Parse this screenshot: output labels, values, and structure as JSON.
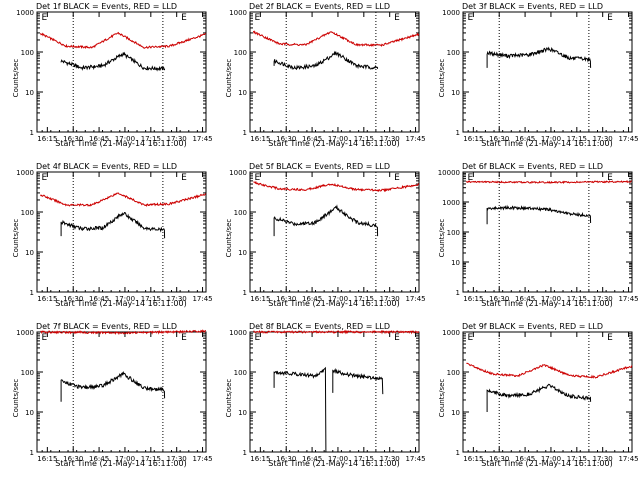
{
  "chart_data": [
    {
      "type": "line",
      "title": "Det 1f BLACK = Events, RED = LLD",
      "xlabel": "Start Time (21-May-14 16:11:00)",
      "ylabel": "Counts/sec",
      "y_scale": "log",
      "ylim": [
        1,
        1000
      ],
      "xlim_minutes": [
        -2,
        96
      ],
      "x_ticks": [
        "16:15",
        "16:30",
        "16:45",
        "17:00",
        "17:15",
        "17:30",
        "17:45"
      ],
      "y_ticks": [
        "1",
        "10",
        "100",
        "1000"
      ],
      "markers": [
        {
          "label": "E",
          "minute": 0
        },
        {
          "label": "E",
          "minute": 81
        }
      ],
      "vlines_minutes": [
        19,
        71
      ],
      "series": [
        {
          "color": "#000000",
          "start_minute": 12,
          "end_minute": 72,
          "start_value": 55,
          "end_value": 38,
          "x": [
            12,
            24,
            36,
            48,
            60,
            72
          ],
          "values": [
            60,
            40,
            45,
            90,
            40,
            38
          ]
        },
        {
          "color": "#cc0000",
          "start_minute": 0,
          "end_minute": 96,
          "x": [
            0,
            15,
            30,
            45,
            60,
            75,
            96
          ],
          "values": [
            290,
            140,
            130,
            300,
            130,
            140,
            280
          ]
        }
      ]
    },
    {
      "type": "line",
      "title": "Det 2f BLACK = Events, RED = LLD",
      "xlabel": "Start Time (21-May-14 16:11:00)",
      "ylabel": "Counts/sec",
      "y_scale": "log",
      "ylim": [
        1,
        1000
      ],
      "xlim_minutes": [
        -2,
        96
      ],
      "x_ticks": [
        "16:15",
        "16:30",
        "16:45",
        "17:00",
        "17:15",
        "17:30",
        "17:45"
      ],
      "y_ticks": [
        "1",
        "10",
        "100",
        "1000"
      ],
      "markers": [
        {
          "label": "E",
          "minute": 0
        },
        {
          "label": "E",
          "minute": 81
        }
      ],
      "vlines_minutes": [
        19,
        71
      ],
      "series": [
        {
          "color": "#000000",
          "start_minute": 12,
          "end_minute": 72,
          "start_value": 45,
          "end_value": 38,
          "x": [
            12,
            24,
            36,
            48,
            60,
            72
          ],
          "values": [
            60,
            40,
            45,
            95,
            45,
            40
          ]
        },
        {
          "color": "#cc0000",
          "start_minute": 0,
          "end_minute": 96,
          "x": [
            0,
            15,
            30,
            45,
            60,
            75,
            96
          ],
          "values": [
            320,
            160,
            150,
            320,
            150,
            150,
            280
          ]
        }
      ]
    },
    {
      "type": "line",
      "title": "Det 3f BLACK = Events, RED = LLD",
      "xlabel": "Start Time (21-May-14 16:11:00)",
      "ylabel": "Counts/sec",
      "y_scale": "log",
      "ylim": [
        1,
        1000
      ],
      "xlim_minutes": [
        -2,
        96
      ],
      "x_ticks": [
        "16:15",
        "16:30",
        "16:45",
        "17:00",
        "17:15",
        "17:30",
        "17:45"
      ],
      "y_ticks": [
        "1",
        "10",
        "100",
        "1000"
      ],
      "markers": [
        {
          "label": "E",
          "minute": 0
        },
        {
          "label": "E",
          "minute": 81
        }
      ],
      "vlines_minutes": [
        19,
        71
      ],
      "series": [
        {
          "color": "#000000",
          "start_minute": 12,
          "end_minute": 72,
          "start_value": 40,
          "end_value": 40,
          "x": [
            12,
            24,
            36,
            48,
            60,
            72
          ],
          "values": [
            95,
            80,
            85,
            120,
            70,
            65
          ]
        }
      ]
    },
    {
      "type": "line",
      "title": "Det 4f BLACK = Events, RED = LLD",
      "xlabel": "Start Time (21-May-14 16:11:00)",
      "ylabel": "Counts/sec",
      "y_scale": "log",
      "ylim": [
        1,
        1000
      ],
      "xlim_minutes": [
        -2,
        96
      ],
      "x_ticks": [
        "16:15",
        "16:30",
        "16:45",
        "17:00",
        "17:15",
        "17:30",
        "17:45"
      ],
      "y_ticks": [
        "1",
        "10",
        "100",
        "1000"
      ],
      "markers": [
        {
          "label": "E",
          "minute": 0
        },
        {
          "label": "E",
          "minute": 81
        }
      ],
      "vlines_minutes": [
        19,
        71
      ],
      "series": [
        {
          "color": "#000000",
          "start_minute": 12,
          "end_minute": 72,
          "start_value": 25,
          "end_value": 22,
          "x": [
            12,
            24,
            36,
            48,
            60,
            72
          ],
          "values": [
            55,
            38,
            40,
            95,
            40,
            35
          ]
        },
        {
          "color": "#cc0000",
          "start_minute": 0,
          "end_minute": 96,
          "x": [
            0,
            15,
            30,
            45,
            60,
            75,
            96
          ],
          "values": [
            270,
            150,
            150,
            300,
            150,
            160,
            280
          ]
        }
      ]
    },
    {
      "type": "line",
      "title": "Det 5f BLACK = Events, RED = LLD",
      "xlabel": "Start Time (21-May-14 16:11:00)",
      "ylabel": "Counts/sec",
      "y_scale": "log",
      "ylim": [
        1,
        1000
      ],
      "xlim_minutes": [
        -2,
        96
      ],
      "x_ticks": [
        "16:15",
        "16:30",
        "16:45",
        "17:00",
        "17:15",
        "17:30",
        "17:45"
      ],
      "y_ticks": [
        "1",
        "10",
        "100",
        "1000"
      ],
      "markers": [
        {
          "label": "E",
          "minute": 0
        },
        {
          "label": "E",
          "minute": 81
        }
      ],
      "vlines_minutes": [
        19,
        71
      ],
      "series": [
        {
          "color": "#000000",
          "start_minute": 12,
          "end_minute": 72,
          "start_value": 25,
          "end_value": 25,
          "x": [
            12,
            24,
            36,
            48,
            60,
            72
          ],
          "values": [
            70,
            50,
            55,
            130,
            55,
            45
          ]
        },
        {
          "color": "#cc0000",
          "start_minute": 0,
          "end_minute": 96,
          "x": [
            0,
            15,
            30,
            45,
            60,
            75,
            96
          ],
          "values": [
            550,
            380,
            360,
            500,
            360,
            350,
            480
          ]
        }
      ]
    },
    {
      "type": "line",
      "title": "Det 6f BLACK = Events, RED = LLD",
      "xlabel": "Start Time (21-May-14 16:11:00)",
      "ylabel": "Counts/sec",
      "y_scale": "log",
      "ylim": [
        1,
        10000
      ],
      "xlim_minutes": [
        -2,
        96
      ],
      "x_ticks": [
        "16:15",
        "16:30",
        "16:45",
        "17:00",
        "17:15",
        "17:30",
        "17:45"
      ],
      "y_ticks": [
        "1",
        "10",
        "100",
        "1000",
        "10000"
      ],
      "markers": [
        {
          "label": "E",
          "minute": 0
        },
        {
          "label": "E",
          "minute": 81
        }
      ],
      "vlines_minutes": [
        19,
        71
      ],
      "series": [
        {
          "color": "#000000",
          "start_minute": 12,
          "end_minute": 72,
          "start_value": 180,
          "end_value": 200,
          "x": [
            12,
            24,
            36,
            48,
            60,
            72
          ],
          "values": [
            600,
            650,
            620,
            550,
            400,
            350
          ]
        },
        {
          "color": "#cc0000",
          "start_minute": 0,
          "end_minute": 96,
          "x": [
            0,
            48,
            96
          ],
          "values": [
            4700,
            4500,
            4800
          ]
        }
      ]
    },
    {
      "type": "line",
      "title": "Det 7f BLACK = Events, RED = LLD",
      "xlabel": "Start Time (21-May-14 16:11:00)",
      "ylabel": "Counts/sec",
      "y_scale": "log",
      "ylim": [
        1,
        1000
      ],
      "xlim_minutes": [
        -2,
        96
      ],
      "x_ticks": [
        "16:15",
        "16:30",
        "16:45",
        "17:00",
        "17:15",
        "17:30",
        "17:45"
      ],
      "y_ticks": [
        "1",
        "10",
        "100",
        "1000"
      ],
      "markers": [
        {
          "label": "E",
          "minute": 0
        },
        {
          "label": "E",
          "minute": 81
        }
      ],
      "vlines_minutes": [
        19,
        71
      ],
      "series": [
        {
          "color": "#000000",
          "start_minute": 12,
          "end_minute": 72,
          "start_value": 18,
          "end_value": 22,
          "x": [
            12,
            24,
            36,
            48,
            60,
            72
          ],
          "values": [
            60,
            40,
            45,
            90,
            40,
            35
          ]
        },
        {
          "color": "#cc0000",
          "start_minute": 0,
          "end_minute": 96,
          "x": [
            0,
            48,
            96
          ],
          "values": [
            1000,
            950,
            1050
          ]
        }
      ]
    },
    {
      "type": "line",
      "title": "Det 8f BLACK = Events, RED = LLD",
      "xlabel": "Start Time (21-May-14 16:11:00)",
      "ylabel": "Counts/sec",
      "y_scale": "log",
      "ylim": [
        1,
        1000
      ],
      "xlim_minutes": [
        -2,
        96
      ],
      "x_ticks": [
        "16:15",
        "16:30",
        "16:45",
        "17:00",
        "17:15",
        "17:30",
        "17:45"
      ],
      "y_ticks": [
        "1",
        "10",
        "100",
        "1000"
      ],
      "markers": [
        {
          "label": "E",
          "minute": 0
        },
        {
          "label": "E",
          "minute": 81
        }
      ],
      "vlines_minutes": [
        19,
        71
      ],
      "series": [
        {
          "color": "#000000",
          "start_minute": 12,
          "end_minute": 42,
          "start_value": 40,
          "end_value": 1,
          "x": [
            12,
            24,
            36,
            42
          ],
          "values": [
            100,
            90,
            80,
            120
          ]
        },
        {
          "color": "#000000",
          "start_minute": 46,
          "end_minute": 75,
          "start_value": 30,
          "end_value": 28,
          "x": [
            46,
            55,
            65,
            75
          ],
          "values": [
            110,
            85,
            75,
            70
          ]
        },
        {
          "color": "#cc0000",
          "start_minute": 0,
          "end_minute": 96,
          "x": [
            0,
            48,
            96
          ],
          "values": [
            1000,
            1000,
            1000
          ]
        }
      ]
    },
    {
      "type": "line",
      "title": "Det 9f BLACK = Events, RED = LLD",
      "xlabel": "Start Time (21-May-14 16:11:00)",
      "ylabel": "Counts/sec",
      "y_scale": "log",
      "ylim": [
        1,
        1000
      ],
      "xlim_minutes": [
        -2,
        96
      ],
      "x_ticks": [
        "16:15",
        "16:30",
        "16:45",
        "17:00",
        "17:15",
        "17:30",
        "17:45"
      ],
      "y_ticks": [
        "1",
        "10",
        "100",
        "1000"
      ],
      "markers": [
        {
          "label": "E",
          "minute": 0
        },
        {
          "label": "E",
          "minute": 81
        }
      ],
      "vlines_minutes": [
        19,
        71
      ],
      "series": [
        {
          "color": "#000000",
          "start_minute": 12,
          "end_minute": 72,
          "start_value": 10,
          "end_value": 18,
          "x": [
            12,
            24,
            36,
            48,
            60,
            72
          ],
          "values": [
            35,
            25,
            28,
            45,
            25,
            22
          ]
        },
        {
          "color": "#cc0000",
          "start_minute": 0,
          "end_minute": 96,
          "x": [
            0,
            15,
            30,
            45,
            60,
            75,
            96
          ],
          "values": [
            160,
            90,
            80,
            150,
            80,
            75,
            140
          ]
        }
      ]
    }
  ]
}
